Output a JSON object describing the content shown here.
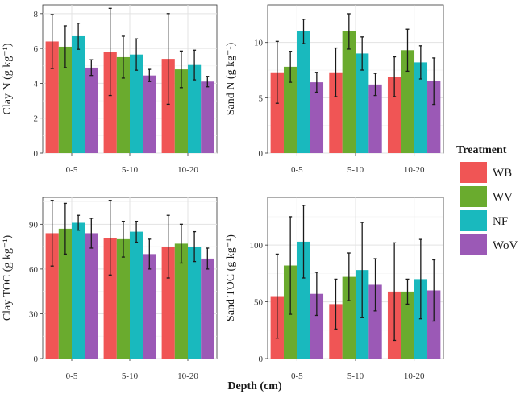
{
  "chart_data": [
    {
      "type": "bar",
      "panel": "clay-n",
      "ylabel": "Clay N (g kg⁻¹)",
      "categories": [
        "0-5",
        "5-10",
        "10-20"
      ],
      "ylim": [
        0,
        8.5
      ],
      "yticks": [
        0,
        2,
        4,
        6,
        8
      ],
      "grid": true,
      "series": [
        {
          "name": "WB",
          "values": [
            6.4,
            5.8,
            5.4
          ],
          "errors": [
            1.55,
            2.5,
            2.6
          ]
        },
        {
          "name": "WV",
          "values": [
            6.1,
            5.5,
            4.8
          ],
          "errors": [
            1.2,
            1.2,
            1.05
          ]
        },
        {
          "name": "NF",
          "values": [
            6.7,
            5.65,
            5.05
          ],
          "errors": [
            0.75,
            0.9,
            0.85
          ]
        },
        {
          "name": "WoV",
          "values": [
            4.9,
            4.45,
            4.1
          ],
          "errors": [
            0.45,
            0.35,
            0.3
          ]
        }
      ]
    },
    {
      "type": "bar",
      "panel": "sand-n",
      "ylabel": "Sand N (g kg⁻¹)",
      "categories": [
        "0-5",
        "5-10",
        "10-20"
      ],
      "ylim": [
        0,
        13.4
      ],
      "yticks": [
        0,
        5,
        10
      ],
      "grid": true,
      "series": [
        {
          "name": "WB",
          "values": [
            7.3,
            7.3,
            6.9
          ],
          "errors": [
            2.8,
            2.2,
            1.8
          ]
        },
        {
          "name": "WV",
          "values": [
            7.8,
            11.0,
            9.3
          ],
          "errors": [
            1.4,
            1.6,
            1.9
          ]
        },
        {
          "name": "NF",
          "values": [
            11.0,
            9.0,
            8.2
          ],
          "errors": [
            1.1,
            1.5,
            1.5
          ]
        },
        {
          "name": "WoV",
          "values": [
            6.4,
            6.2,
            6.5
          ],
          "errors": [
            0.9,
            1.0,
            2.1
          ]
        }
      ]
    },
    {
      "type": "bar",
      "panel": "clay-toc",
      "ylabel": "Clay TOC (g kg⁻¹)",
      "categories": [
        "0-5",
        "5-10",
        "10-20"
      ],
      "ylim": [
        0,
        108
      ],
      "yticks": [
        0,
        30,
        60,
        90
      ],
      "grid": true,
      "series": [
        {
          "name": "WB",
          "values": [
            84,
            81,
            75
          ],
          "errors": [
            22,
            25,
            21
          ]
        },
        {
          "name": "WV",
          "values": [
            87,
            80,
            77
          ],
          "errors": [
            17,
            12,
            13
          ]
        },
        {
          "name": "NF",
          "values": [
            91,
            85,
            75
          ],
          "errors": [
            5,
            7,
            10
          ]
        },
        {
          "name": "WoV",
          "values": [
            84,
            70,
            67
          ],
          "errors": [
            10,
            10,
            7
          ]
        }
      ]
    },
    {
      "type": "bar",
      "panel": "sand-toc",
      "ylabel": "Sand TOC (g kg⁻¹)",
      "categories": [
        "0-5",
        "5-10",
        "10-20"
      ],
      "ylim": [
        0,
        142
      ],
      "yticks": [
        0,
        50,
        100
      ],
      "grid": true,
      "series": [
        {
          "name": "WB",
          "values": [
            55,
            48,
            59
          ],
          "errors": [
            37,
            22,
            43
          ]
        },
        {
          "name": "WV",
          "values": [
            82,
            72,
            59
          ],
          "errors": [
            43,
            21,
            11
          ]
        },
        {
          "name": "NF",
          "values": [
            103,
            78,
            70
          ],
          "errors": [
            32,
            42,
            35
          ]
        },
        {
          "name": "WoV",
          "values": [
            57,
            65,
            60
          ],
          "errors": [
            19,
            23,
            27
          ]
        }
      ]
    }
  ],
  "xlabel": "Depth (cm)",
  "legend": {
    "title": "Treatment",
    "position": "right",
    "items": [
      {
        "label": "WB",
        "color": "#f05555"
      },
      {
        "label": "WV",
        "color": "#6aab2e"
      },
      {
        "label": "NF",
        "color": "#19b9be"
      },
      {
        "label": "WoV",
        "color": "#9b59b6"
      }
    ]
  }
}
